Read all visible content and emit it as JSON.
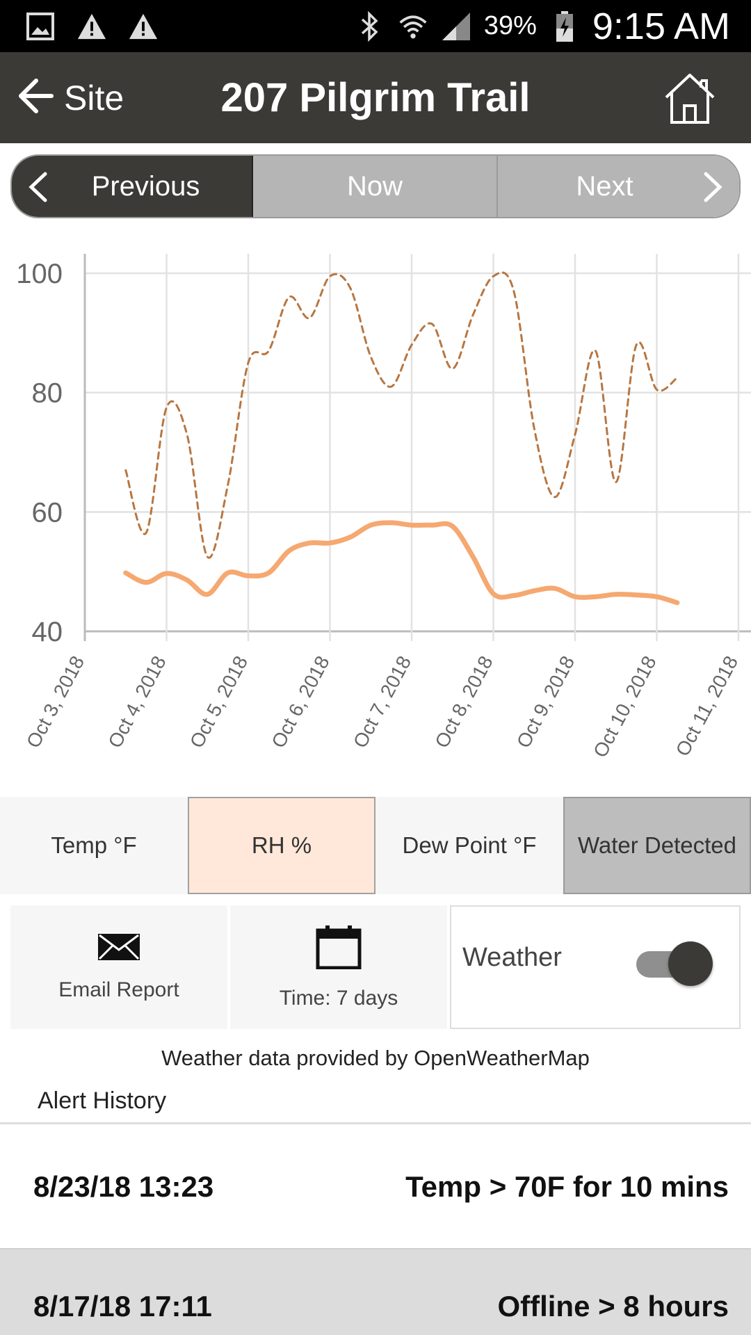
{
  "status_bar": {
    "battery": "39%",
    "time": "9:15 AM",
    "icons": [
      "gallery-icon",
      "warning-icon",
      "warning-icon",
      "bluetooth-icon",
      "wifi-icon",
      "signal-icon",
      "battery-charging-icon"
    ]
  },
  "app_bar": {
    "back_label": "Site",
    "title": "207 Pilgrim Trail"
  },
  "nav": {
    "previous": "Previous",
    "now": "Now",
    "next": "Next"
  },
  "chart_data": {
    "type": "line",
    "title": "",
    "xlabel": "",
    "ylabel": "",
    "ylim": [
      40,
      100
    ],
    "yticks": [
      40,
      60,
      80,
      100
    ],
    "xlim": [
      "2018-10-03",
      "2018-10-11"
    ],
    "xtick_labels": [
      "Oct 3, 2018",
      "Oct 4, 2018",
      "Oct 5, 2018",
      "Oct 6, 2018",
      "Oct 7, 2018",
      "Oct 8, 2018",
      "Oct 9, 2018",
      "Oct 10, 2018",
      "Oct 11, 2018"
    ],
    "grid": true,
    "series": [
      {
        "style": "solid",
        "color": "#f5a870",
        "points": [
          [
            "2018-10-03 12:00",
            49.8
          ],
          [
            "2018-10-03 18:00",
            48.2
          ],
          [
            "2018-10-04 00:00",
            49.7
          ],
          [
            "2018-10-04 06:00",
            48.6
          ],
          [
            "2018-10-04 12:00",
            46.2
          ],
          [
            "2018-10-04 18:00",
            49.8
          ],
          [
            "2018-10-05 00:00",
            49.3
          ],
          [
            "2018-10-05 06:00",
            49.8
          ],
          [
            "2018-10-05 12:00",
            53.5
          ],
          [
            "2018-10-05 18:00",
            54.8
          ],
          [
            "2018-10-06 00:00",
            54.8
          ],
          [
            "2018-10-06 06:00",
            55.8
          ],
          [
            "2018-10-06 12:00",
            57.8
          ],
          [
            "2018-10-06 18:00",
            58.2
          ],
          [
            "2018-10-07 00:00",
            57.8
          ],
          [
            "2018-10-07 06:00",
            57.8
          ],
          [
            "2018-10-07 12:00",
            57.6
          ],
          [
            "2018-10-07 18:00",
            52.5
          ],
          [
            "2018-10-08 00:00",
            46.3
          ],
          [
            "2018-10-08 06:00",
            46.0
          ],
          [
            "2018-10-08 12:00",
            46.8
          ],
          [
            "2018-10-08 18:00",
            47.2
          ],
          [
            "2018-10-09 00:00",
            45.8
          ],
          [
            "2018-10-09 06:00",
            45.8
          ],
          [
            "2018-10-09 12:00",
            46.2
          ],
          [
            "2018-10-09 18:00",
            46.1
          ],
          [
            "2018-10-10 00:00",
            45.8
          ],
          [
            "2018-10-10 06:00",
            44.8
          ]
        ]
      },
      {
        "style": "dashed",
        "color": "#b87640",
        "points": [
          [
            "2018-10-03 12:00",
            67
          ],
          [
            "2018-10-03 18:00",
            56.5
          ],
          [
            "2018-10-04 00:00",
            77.5
          ],
          [
            "2018-10-04 06:00",
            73
          ],
          [
            "2018-10-04 12:00",
            52.5
          ],
          [
            "2018-10-04 18:00",
            64.5
          ],
          [
            "2018-10-05 00:00",
            85
          ],
          [
            "2018-10-05 06:00",
            87
          ],
          [
            "2018-10-05 12:00",
            96
          ],
          [
            "2018-10-05 18:00",
            92.5
          ],
          [
            "2018-10-06 00:00",
            99.5
          ],
          [
            "2018-10-06 06:00",
            97.5
          ],
          [
            "2018-10-06 12:00",
            86
          ],
          [
            "2018-10-06 18:00",
            81
          ],
          [
            "2018-10-07 00:00",
            88
          ],
          [
            "2018-10-07 06:00",
            91.5
          ],
          [
            "2018-10-07 12:00",
            84
          ],
          [
            "2018-10-07 18:00",
            93
          ],
          [
            "2018-10-08 00:00",
            99.5
          ],
          [
            "2018-10-08 06:00",
            97
          ],
          [
            "2018-10-08 12:00",
            74
          ],
          [
            "2018-10-08 18:00",
            62.5
          ],
          [
            "2018-10-09 00:00",
            73
          ],
          [
            "2018-10-09 06:00",
            87
          ],
          [
            "2018-10-09 12:00",
            65
          ],
          [
            "2018-10-09 18:00",
            88
          ],
          [
            "2018-10-10 00:00",
            80.5
          ],
          [
            "2018-10-10 06:00",
            82.5
          ]
        ]
      }
    ]
  },
  "metrics": {
    "temp": "Temp °F",
    "rh": "RH %",
    "dew_point": "Dew Point °F",
    "water": "Water Detected"
  },
  "controls": {
    "email_report": "Email Report",
    "time_range": "Time: 7 days",
    "weather_label": "Weather",
    "weather_on": true
  },
  "attribution": "Weather data provided by OpenWeatherMap",
  "alert_history": {
    "title": "Alert History",
    "rows": [
      {
        "time": "8/23/18 13:23",
        "description": "Temp > 70F for 10 mins"
      },
      {
        "time": "8/17/18 17:11",
        "description": "Offline > 8 hours"
      }
    ]
  },
  "colors": {
    "app_bar": "#3b3a36",
    "rh_active": "#ffe8d9",
    "rh_line": "#f5a870",
    "dew_line": "#b87640"
  }
}
